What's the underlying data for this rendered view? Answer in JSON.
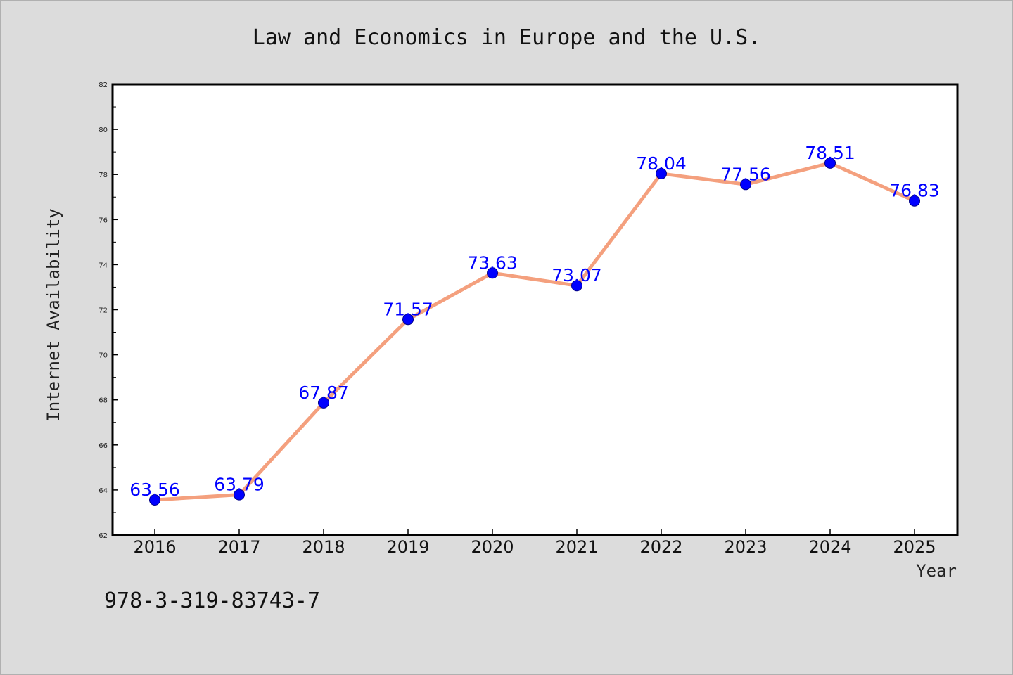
{
  "chart_data": {
    "type": "line",
    "title": "Law and Economics in Europe and the U.S.",
    "xlabel": "Year",
    "ylabel": "Internet Availability",
    "categories": [
      "2016",
      "2017",
      "2018",
      "2019",
      "2020",
      "2021",
      "2022",
      "2023",
      "2024",
      "2025"
    ],
    "series": [
      {
        "values": [
          63.56,
          63.79,
          67.87,
          71.57,
          73.63,
          73.07,
          78.04,
          77.56,
          78.51,
          76.83
        ],
        "line_color": "#f4a07e",
        "marker_color": "#0000ff"
      }
    ],
    "data_labels": [
      "63.56",
      "63.79",
      "67.87",
      "71.57",
      "73.63",
      "73.07",
      "78.04",
      "77.56",
      "78.51",
      "76.83"
    ],
    "ylim": [
      62,
      82
    ],
    "yticks": [
      62,
      64,
      66,
      68,
      70,
      72,
      74,
      76,
      78,
      80,
      82
    ],
    "grid": false,
    "legend": "none"
  },
  "footnote": "978-3-319-83743-7",
  "colors": {
    "background": "#dcdcdc",
    "plot_background": "#ffffff",
    "line": "#f4a07e",
    "marker": "#0000ff",
    "data_label": "#0000ff"
  }
}
